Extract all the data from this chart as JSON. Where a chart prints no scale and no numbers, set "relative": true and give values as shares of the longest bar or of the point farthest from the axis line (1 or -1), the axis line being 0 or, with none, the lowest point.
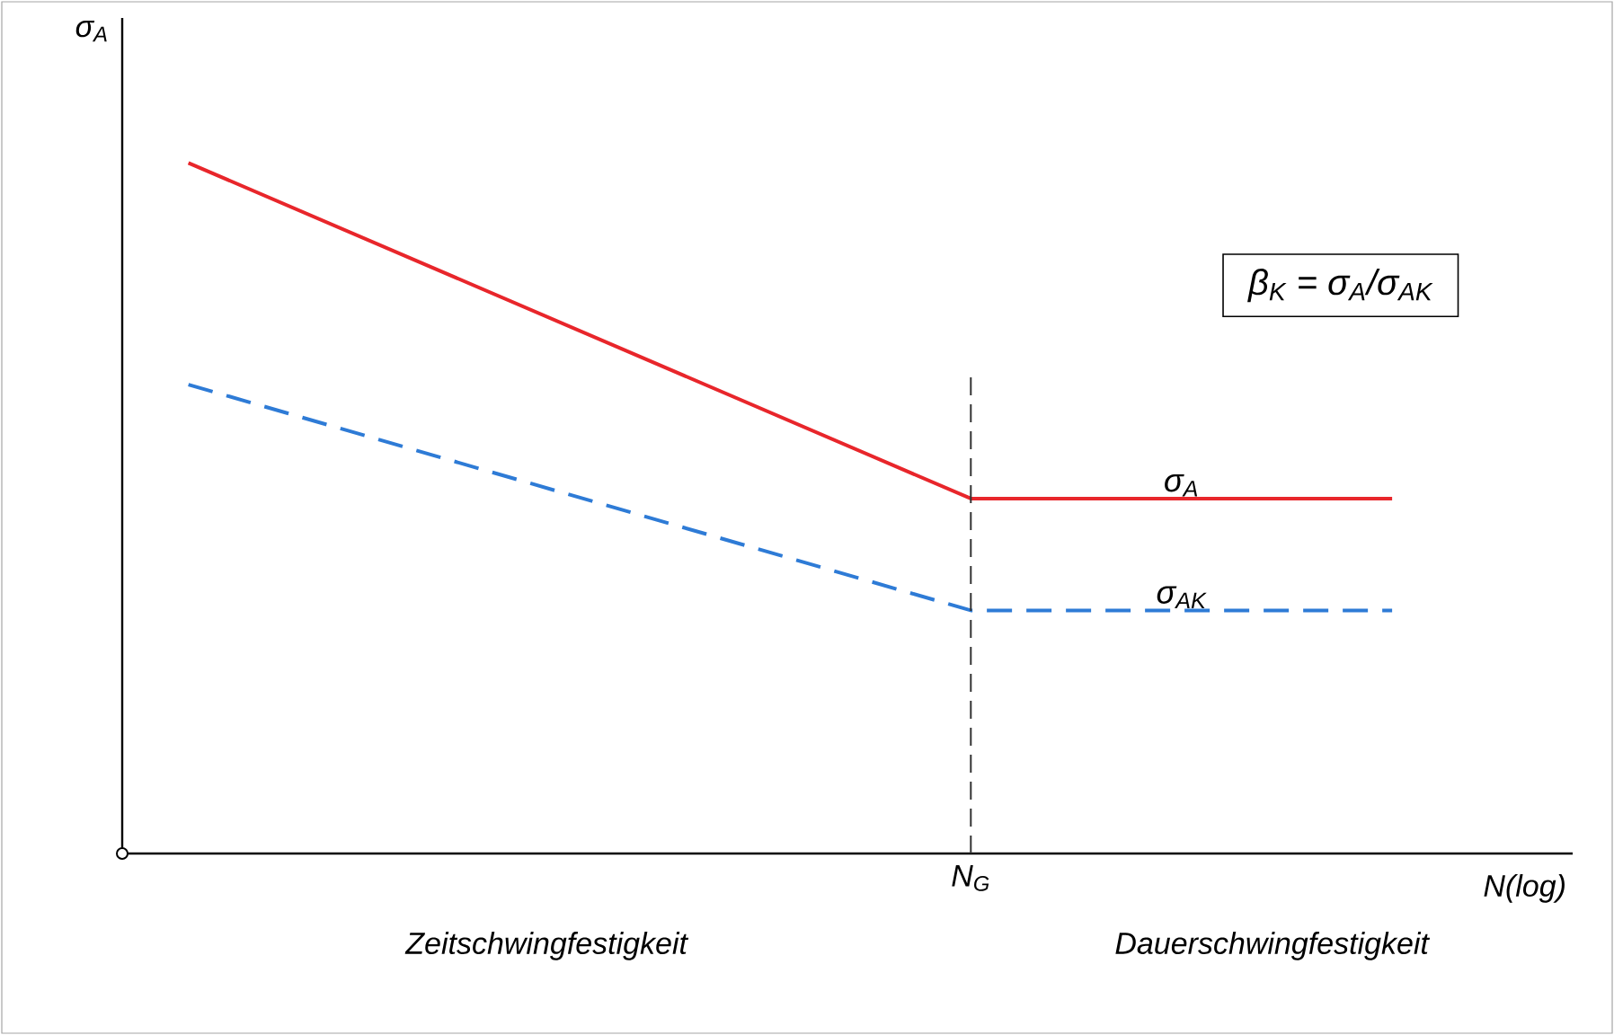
{
  "chart_data": {
    "type": "line",
    "relative": true,
    "xlabel": "N(log)",
    "ylabel": "σ$_{A}$",
    "categories": [
      null,
      null,
      null,
      null,
      null,
      null,
      null,
      null,
      null,
      null,
      null,
      null,
      null,
      null,
      null,
      null,
      null,
      null,
      null,
      null,
      null
    ],
    "series": [
      {
        "name": "σ$_{A}$",
        "color": "#e8262b",
        "line_style": "solid",
        "values": [
          1,
          null,
          null,
          null,
          null,
          null,
          null,
          null,
          null,
          null,
          null,
          null,
          null,
          0.514,
          null,
          null,
          null,
          null,
          null,
          null,
          0.514
        ]
      },
      {
        "name": "σ$_{AK}$",
        "color": "#2e7bd6",
        "line_style": "dashed",
        "values": [
          0.679,
          null,
          null,
          null,
          null,
          null,
          null,
          null,
          null,
          null,
          null,
          null,
          null,
          0.352,
          null,
          null,
          null,
          null,
          null,
          null,
          0.352
        ]
      }
    ],
    "annotations": [
      "Zeitschwingfestigkeit",
      "Dauerschwingfestigkeit",
      "β$_{K}$ = σ$_{A}$/σ$_{AK}$",
      "N$_{G}$"
    ],
    "marker": "none"
  }
}
